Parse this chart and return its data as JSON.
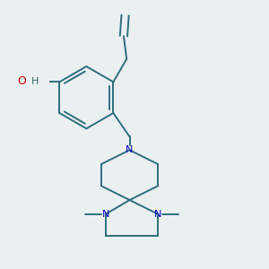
{
  "background_color": "#eaeff1",
  "bond_color": "#2d6e7e",
  "N_color": "#0000cc",
  "O_color": "#cc0000",
  "bond_width": 1.4,
  "figsize": [
    3.0,
    3.0
  ],
  "dpi": 100,
  "xlim": [
    -0.5,
    1.8
  ],
  "ylim": [
    -1.8,
    1.8
  ]
}
